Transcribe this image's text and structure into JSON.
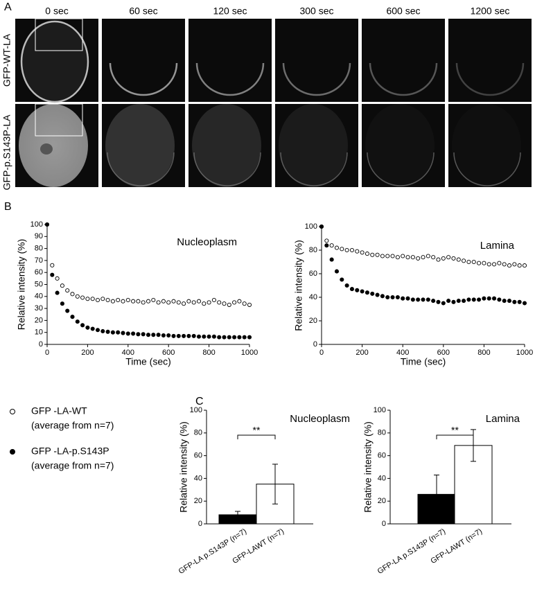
{
  "panel_letters": [
    "A",
    "B",
    "C"
  ],
  "panel_a": {
    "times": [
      "0 sec",
      "60 sec",
      "120 sec",
      "300 sec",
      "600 sec",
      "1200 sec"
    ],
    "rows": [
      "GFP-WT-LA",
      "GFP-p.S143P-LA"
    ]
  },
  "legend": {
    "items": [
      {
        "name": "GFP -LA-WT",
        "note": "(average from n=7)",
        "marker": "open"
      },
      {
        "name": "GFP -LA-p.S143P",
        "note": "(average from n=7)",
        "marker": "filled"
      }
    ]
  },
  "chart_data": [
    {
      "type": "scatter",
      "title": "Nucleoplasm",
      "xlabel": "Time (sec)",
      "ylabel": "Relative intensity (%)",
      "x": [
        0,
        25,
        50,
        75,
        100,
        125,
        150,
        175,
        200,
        225,
        250,
        275,
        300,
        325,
        350,
        375,
        400,
        425,
        450,
        475,
        500,
        525,
        550,
        575,
        600,
        625,
        650,
        675,
        700,
        725,
        750,
        775,
        800,
        825,
        850,
        875,
        900,
        925,
        950,
        975,
        1000
      ],
      "series": [
        {
          "color": "#000000",
          "marker": "open",
          "values": [
            100,
            66,
            55,
            49,
            45,
            42,
            40,
            39,
            38,
            38,
            37,
            38,
            37,
            36,
            37,
            36,
            37,
            36,
            36,
            35,
            36,
            37,
            35,
            36,
            35,
            36,
            35,
            34,
            36,
            35,
            36,
            34,
            35,
            37,
            35,
            34,
            33,
            35,
            36,
            34,
            33
          ]
        },
        {
          "color": "#000000",
          "marker": "filled",
          "values": [
            100,
            58,
            43,
            34,
            28,
            23,
            19,
            16,
            14,
            13,
            12,
            11,
            10.5,
            10,
            10,
            9.5,
            9,
            9,
            8.5,
            8.5,
            8,
            8,
            8,
            7.5,
            7.5,
            7,
            7,
            7,
            7,
            7,
            6.5,
            6.5,
            6.5,
            6.5,
            6,
            6,
            6,
            6,
            6,
            6,
            6
          ]
        }
      ],
      "xlim": [
        0,
        1000
      ],
      "xticks": [
        0,
        200,
        400,
        600,
        800,
        1000
      ],
      "ylim": [
        0,
        100
      ],
      "yticks": [
        0,
        10,
        20,
        30,
        40,
        50,
        60,
        70,
        80,
        90,
        100
      ]
    },
    {
      "type": "scatter",
      "title": "Lamina",
      "xlabel": "Time (sec)",
      "ylabel": "Relative intensity (%)",
      "x": [
        0,
        25,
        50,
        75,
        100,
        125,
        150,
        175,
        200,
        225,
        250,
        275,
        300,
        325,
        350,
        375,
        400,
        425,
        450,
        475,
        500,
        525,
        550,
        575,
        600,
        625,
        650,
        675,
        700,
        725,
        750,
        775,
        800,
        825,
        850,
        875,
        900,
        925,
        950,
        975,
        1000
      ],
      "series": [
        {
          "color": "#000000",
          "marker": "open",
          "values": [
            100,
            88,
            84,
            82,
            81,
            80,
            80,
            79,
            78,
            77,
            76,
            76,
            75,
            75,
            75,
            74,
            75,
            74,
            74,
            73,
            74,
            75,
            74,
            72,
            73,
            74,
            73,
            72,
            71,
            70,
            70,
            69,
            69,
            68,
            68,
            69,
            68,
            67,
            68,
            67,
            67
          ]
        },
        {
          "color": "#000000",
          "marker": "filled",
          "values": [
            100,
            84,
            72,
            62,
            55,
            50,
            47,
            46,
            45,
            44,
            43,
            42,
            41,
            40,
            40,
            40,
            39,
            39,
            38,
            38,
            38,
            38,
            37,
            36,
            35,
            37,
            36,
            37,
            37,
            38,
            38,
            38,
            39,
            39,
            39,
            38,
            37,
            37,
            36,
            36,
            35
          ]
        }
      ],
      "xlim": [
        0,
        1000
      ],
      "xticks": [
        0,
        200,
        400,
        600,
        800,
        1000
      ],
      "ylim": [
        0,
        100
      ],
      "yticks": [
        0,
        20,
        40,
        60,
        80,
        100
      ]
    },
    {
      "type": "bar",
      "title": "Nucleoplasm",
      "ylabel": "Relative intensity (%)",
      "categories": [
        "GFP-LA p.S143P (n=7)",
        "GFP-LAWT (n=7)"
      ],
      "values": [
        8,
        35
      ],
      "errors": [
        3,
        17.5
      ],
      "colors": [
        "#000000",
        "#ffffff"
      ],
      "significance": "**",
      "ylim": [
        0,
        100
      ],
      "yticks": [
        0,
        20,
        40,
        60,
        80,
        100
      ]
    },
    {
      "type": "bar",
      "title": "Lamina",
      "ylabel": "Relative intensity (%)",
      "categories": [
        "GFP-LA p.S143P (n=7)",
        "GFP-LAWT (n=7)"
      ],
      "values": [
        26,
        69
      ],
      "errors": [
        17,
        14
      ],
      "colors": [
        "#000000",
        "#ffffff"
      ],
      "significance": "**",
      "ylim": [
        0,
        100
      ],
      "yticks": [
        0,
        20,
        40,
        60,
        80,
        100
      ]
    }
  ]
}
